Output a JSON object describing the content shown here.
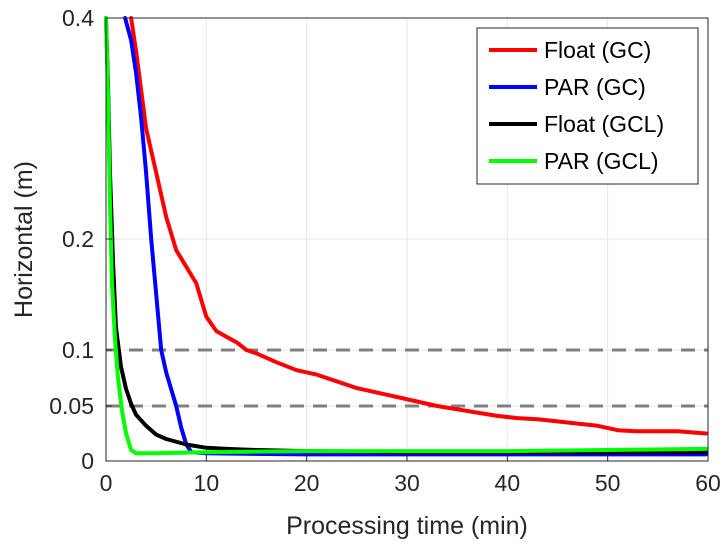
{
  "chart_data": {
    "type": "line",
    "title": "",
    "xlabel": "Processing time (min)",
    "ylabel": "Horizontal (m)",
    "xlim": [
      0,
      60
    ],
    "ylim": [
      0,
      0.4
    ],
    "x_ticks": [
      0,
      10,
      20,
      30,
      40,
      50,
      60
    ],
    "x_tick_labels": [
      "0",
      "10",
      "20",
      "30",
      "40",
      "50",
      "60"
    ],
    "y_ticks": [
      0,
      0.05,
      0.1,
      0.2,
      0.4
    ],
    "y_tick_labels": [
      "0",
      "0.05",
      "0.1",
      "0.2",
      "0.4"
    ],
    "y_scale": "nonlinear (tick spacing as shown)",
    "grid": true,
    "legend_position": "top-right",
    "reference_lines": [
      {
        "y": 0.1,
        "style": "dashed",
        "color": "#808080"
      },
      {
        "y": 0.05,
        "style": "dashed",
        "color": "#808080"
      }
    ],
    "series": [
      {
        "name": "Float (GC)",
        "color": "#ff0000",
        "points": [
          [
            2.5,
            0.4
          ],
          [
            3,
            0.37
          ],
          [
            4,
            0.3
          ],
          [
            5,
            0.26
          ],
          [
            6,
            0.22
          ],
          [
            7,
            0.19
          ],
          [
            8,
            0.175
          ],
          [
            9,
            0.16
          ],
          [
            10,
            0.13
          ],
          [
            11,
            0.117
          ],
          [
            12,
            0.112
          ],
          [
            13,
            0.107
          ],
          [
            14,
            0.1
          ],
          [
            15,
            0.097
          ],
          [
            17,
            0.089
          ],
          [
            19,
            0.082
          ],
          [
            21,
            0.078
          ],
          [
            23,
            0.072
          ],
          [
            25,
            0.066
          ],
          [
            27,
            0.062
          ],
          [
            29,
            0.058
          ],
          [
            31,
            0.054
          ],
          [
            33,
            0.05
          ],
          [
            35,
            0.047
          ],
          [
            37,
            0.044
          ],
          [
            39,
            0.041
          ],
          [
            41,
            0.039
          ],
          [
            43,
            0.038
          ],
          [
            45,
            0.036
          ],
          [
            47,
            0.034
          ],
          [
            49,
            0.032
          ],
          [
            51,
            0.028
          ],
          [
            53,
            0.027
          ],
          [
            55,
            0.027
          ],
          [
            57,
            0.027
          ],
          [
            59.8,
            0.025
          ]
        ]
      },
      {
        "name": "PAR (GC)",
        "color": "#0000ff",
        "points": [
          [
            1.9,
            0.4
          ],
          [
            2.5,
            0.38
          ],
          [
            3,
            0.35
          ],
          [
            3.5,
            0.31
          ],
          [
            4,
            0.26
          ],
          [
            4.5,
            0.2
          ],
          [
            5,
            0.15
          ],
          [
            5.5,
            0.1
          ],
          [
            6,
            0.08
          ],
          [
            6.5,
            0.065
          ],
          [
            7,
            0.05
          ],
          [
            7.5,
            0.03
          ],
          [
            8,
            0.015
          ],
          [
            8.5,
            0.008
          ],
          [
            10,
            0.007
          ],
          [
            20,
            0.006
          ],
          [
            30,
            0.006
          ],
          [
            40,
            0.006
          ],
          [
            50,
            0.006
          ],
          [
            59.8,
            0.006
          ]
        ]
      },
      {
        "name": "Float (GCL)",
        "color": "#000000",
        "points": [
          [
            0,
            0.4
          ],
          [
            0.2,
            0.34
          ],
          [
            0.4,
            0.26
          ],
          [
            0.7,
            0.18
          ],
          [
            1,
            0.12
          ],
          [
            1.5,
            0.085
          ],
          [
            2,
            0.065
          ],
          [
            2.5,
            0.052
          ],
          [
            3,
            0.042
          ],
          [
            4,
            0.032
          ],
          [
            5,
            0.024
          ],
          [
            6,
            0.02
          ],
          [
            8,
            0.015
          ],
          [
            10,
            0.012
          ],
          [
            12,
            0.011
          ],
          [
            15,
            0.01
          ],
          [
            20,
            0.009
          ],
          [
            30,
            0.008
          ],
          [
            40,
            0.008
          ],
          [
            50,
            0.008
          ],
          [
            59.8,
            0.008
          ]
        ]
      },
      {
        "name": "PAR (GCL)",
        "color": "#00ff00",
        "points": [
          [
            0,
            0.4
          ],
          [
            0.2,
            0.33
          ],
          [
            0.4,
            0.23
          ],
          [
            0.6,
            0.16
          ],
          [
            0.9,
            0.11
          ],
          [
            1.2,
            0.075
          ],
          [
            1.6,
            0.045
          ],
          [
            2,
            0.025
          ],
          [
            2.5,
            0.01
          ],
          [
            3,
            0.007
          ],
          [
            5,
            0.007
          ],
          [
            10,
            0.008
          ],
          [
            20,
            0.009
          ],
          [
            30,
            0.009
          ],
          [
            40,
            0.009
          ],
          [
            50,
            0.01
          ],
          [
            59.8,
            0.011
          ]
        ]
      }
    ]
  }
}
